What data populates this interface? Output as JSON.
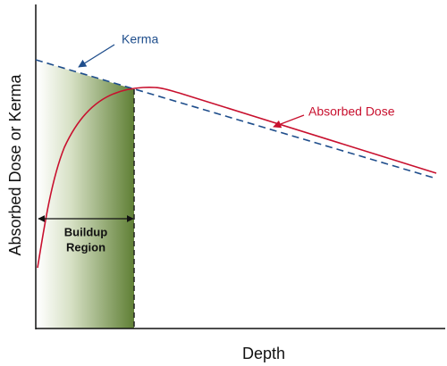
{
  "axes": {
    "x_label": "Depth",
    "y_label": "Absorbed Dose or Kerma"
  },
  "curves": [
    {
      "label": "Kerma"
    },
    {
      "label": "Absorbed Dose"
    }
  ],
  "region": {
    "label_lines": [
      "Buildup",
      "Region"
    ]
  }
}
